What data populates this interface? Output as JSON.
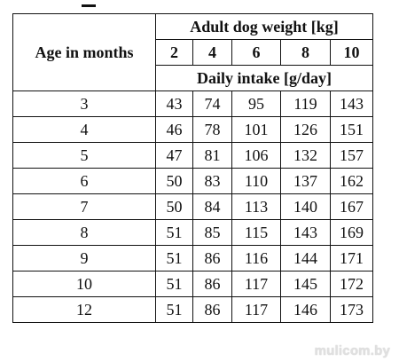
{
  "table": {
    "age_header": "Age in months",
    "weight_header": "Adult dog weight [kg]",
    "weights": [
      "2",
      "4",
      "6",
      "8",
      "10"
    ],
    "intake_header": "Daily intake [g/day]",
    "rows": [
      {
        "age": "3",
        "values": [
          "43",
          "74",
          "95",
          "119",
          "143"
        ]
      },
      {
        "age": "4",
        "values": [
          "46",
          "78",
          "101",
          "126",
          "151"
        ]
      },
      {
        "age": "5",
        "values": [
          "47",
          "81",
          "106",
          "132",
          "157"
        ]
      },
      {
        "age": "6",
        "values": [
          "50",
          "83",
          "110",
          "137",
          "162"
        ]
      },
      {
        "age": "7",
        "values": [
          "50",
          "84",
          "113",
          "140",
          "167"
        ]
      },
      {
        "age": "8",
        "values": [
          "51",
          "85",
          "115",
          "143",
          "169"
        ]
      },
      {
        "age": "9",
        "values": [
          "51",
          "86",
          "116",
          "144",
          "171"
        ]
      },
      {
        "age": "10",
        "values": [
          "51",
          "86",
          "117",
          "145",
          "172"
        ]
      },
      {
        "age": "12",
        "values": [
          "51",
          "86",
          "117",
          "146",
          "173"
        ]
      }
    ]
  },
  "watermark": "mulicom.by"
}
